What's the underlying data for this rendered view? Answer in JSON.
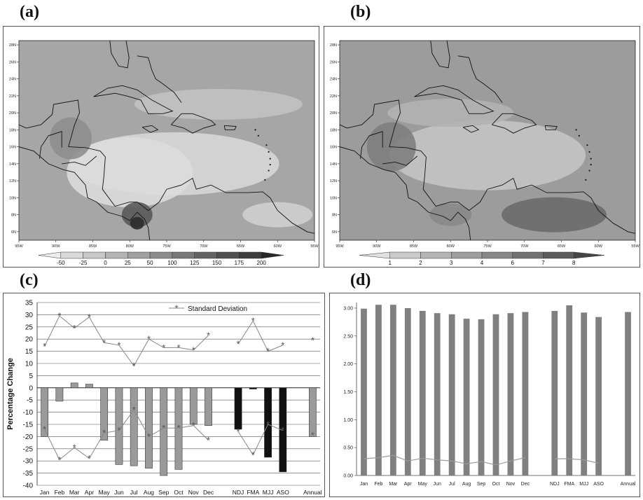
{
  "panels": {
    "a": {
      "label": "(a)"
    },
    "b": {
      "label": "(b)"
    },
    "c": {
      "label": "(c)"
    },
    "d": {
      "label": "(d)"
    }
  },
  "maps": {
    "lat_ticks": [
      "28N",
      "26N",
      "24N",
      "22N",
      "20N",
      "18N",
      "16N",
      "14N",
      "12N",
      "10N",
      "8N",
      "6N"
    ],
    "lon_ticks": [
      "95W",
      "90W",
      "85W",
      "80W",
      "75W",
      "70W",
      "65W",
      "60W",
      "55W"
    ],
    "colorbar_a": [
      "-50",
      "-25",
      "0",
      "25",
      "50",
      "100",
      "125",
      "150",
      "175",
      "200"
    ],
    "colorbar_b": [
      "1",
      "2",
      "3",
      "4",
      "6",
      "7",
      "8"
    ],
    "colors_a": [
      "#ececec",
      "#dadada",
      "#c8c8c8",
      "#b4b4b4",
      "#a0a0a0",
      "#8c8c8c",
      "#787878",
      "#646464",
      "#505050",
      "#3c3c3c",
      "#282828"
    ],
    "colors_b": [
      "#e0e0e0",
      "#cacaca",
      "#b4b4b4",
      "#9e9e9e",
      "#888888",
      "#727272",
      "#5c5c5c",
      "#464646"
    ]
  },
  "chart_data": [
    {
      "panel": "c",
      "type": "bar",
      "categories": [
        "Jan",
        "Feb",
        "Mar",
        "Apr",
        "May",
        "Jun",
        "Jul",
        "Aug",
        "Sep",
        "Oct",
        "Nov",
        "Dec",
        "",
        "NDJ",
        "FMA",
        "MJJ",
        "ASO",
        "",
        "Annual"
      ],
      "values": [
        -20,
        -5.5,
        2,
        1.5,
        -21.5,
        -31.5,
        -32,
        -33,
        -36,
        -33.5,
        -15,
        -15.5,
        null,
        -17,
        -0.5,
        -28.5,
        -34.5,
        null,
        -20
      ],
      "bar_colors": [
        "#9a9a9a",
        "#9a9a9a",
        "#9a9a9a",
        "#9a9a9a",
        "#9a9a9a",
        "#9a9a9a",
        "#9a9a9a",
        "#9a9a9a",
        "#9a9a9a",
        "#9a9a9a",
        "#9a9a9a",
        "#9a9a9a",
        "#9a9a9a",
        "#111111",
        "#111111",
        "#111111",
        "#111111",
        "#9a9a9a",
        "#9a9a9a"
      ],
      "series": [
        {
          "name": "Standard Deviation",
          "values": [
            17,
            29.5,
            24.5,
            29,
            18.5,
            17.5,
            9,
            20,
            16.5,
            16.5,
            15.5,
            21.5,
            null,
            18,
            27.5,
            15,
            17.5,
            null,
            19.5
          ]
        },
        {
          "name": "",
          "values": [
            -17,
            -29.5,
            -24.5,
            -29,
            -18.5,
            -17.5,
            -9,
            -20,
            -16.5,
            -16.5,
            -15.5,
            -21.5,
            null,
            -18,
            -27.5,
            -15,
            -17.5,
            null,
            -19.5
          ]
        }
      ],
      "ylabel": "Percentage Change",
      "ylim": [
        -40,
        35
      ],
      "yticks": [
        "35",
        "30",
        "25",
        "20",
        "15",
        "10",
        "5",
        "0",
        "-5",
        "-10",
        "-15",
        "-20",
        "-25",
        "-30",
        "-35",
        "-40"
      ],
      "grid": true,
      "legend": "top-center"
    },
    {
      "panel": "d",
      "type": "bar",
      "categories": [
        "Jan",
        "Feb",
        "Mar",
        "Apr",
        "May",
        "Jun",
        "Jul",
        "Aug",
        "Sep",
        "Oct",
        "Nov",
        "Dec",
        "",
        "NDJ",
        "FMA",
        "MJJ",
        "ASO",
        "",
        "Annual"
      ],
      "values": [
        2.99,
        3.06,
        3.06,
        3.0,
        2.95,
        2.91,
        2.89,
        2.81,
        2.8,
        2.89,
        2.91,
        2.93,
        null,
        2.95,
        3.05,
        2.92,
        2.84,
        null,
        2.93
      ],
      "series": [
        {
          "name": "",
          "values": [
            0.3,
            0.32,
            0.36,
            0.26,
            0.31,
            0.28,
            0.26,
            0.21,
            0.25,
            0.19,
            0.26,
            0.32,
            null,
            0.3,
            0.3,
            0.28,
            0.22,
            null,
            null
          ]
        }
      ],
      "ylim": [
        0,
        3.1
      ],
      "yticks": [
        "3.00",
        "2.50",
        "2.00",
        "1.50",
        "1.00",
        "0.50",
        "0.00"
      ],
      "bar_color": "#808080",
      "grid": false
    }
  ]
}
